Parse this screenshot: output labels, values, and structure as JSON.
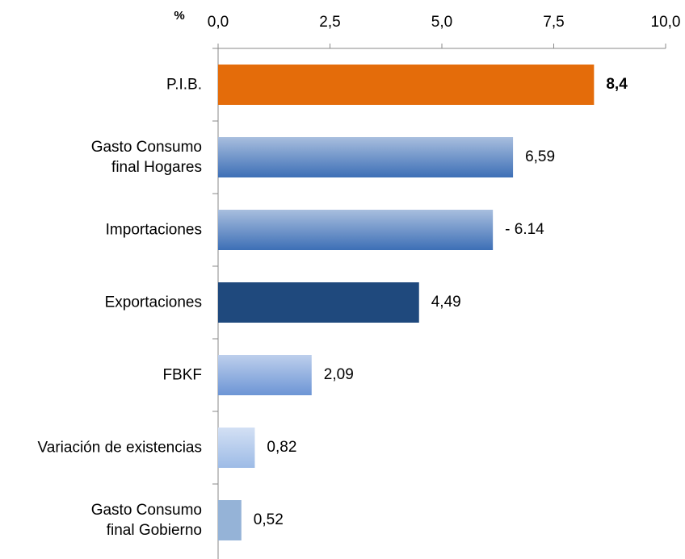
{
  "chart_data": {
    "type": "hbar",
    "axis_label": "%",
    "categories": [
      "P.I.B.",
      "Gasto Consumo\nfinal Hogares",
      "Importaciones",
      "Exportaciones",
      "FBKF",
      "Variación de existencias",
      "Gasto Consumo\nfinal Gobierno"
    ],
    "values": [
      8.4,
      6.59,
      6.14,
      4.49,
      2.09,
      0.82,
      0.52
    ],
    "value_labels": [
      "8,4",
      "6,59",
      "- 6.14",
      "4,49",
      "2,09",
      "0,82",
      "0,52"
    ],
    "colors": [
      "#e46c0a",
      "#3d6fb6",
      "#3d6fb6",
      "#1f497d",
      "#6d95d5",
      "#9dbbe6",
      "#95b3d7"
    ],
    "gradient": [
      false,
      true,
      true,
      false,
      true,
      true,
      false
    ],
    "xlim": [
      0,
      10
    ],
    "xticks": [
      {
        "value": 0,
        "label": "0,0"
      },
      {
        "value": 2.5,
        "label": "2,5"
      },
      {
        "value": 5,
        "label": "5,0"
      },
      {
        "value": 7.5,
        "label": "7,5"
      },
      {
        "value": 10,
        "label": "10,0"
      }
    ]
  }
}
